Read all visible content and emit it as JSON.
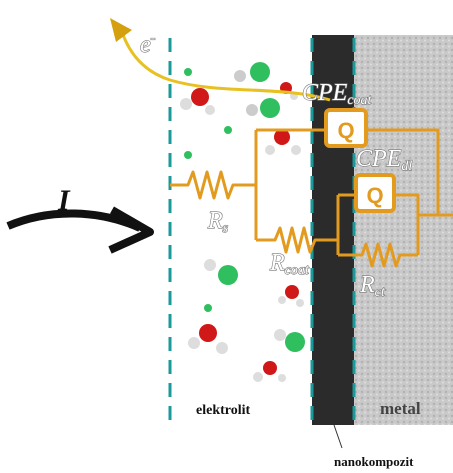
{
  "current": "I",
  "electron": {
    "symbol": "e",
    "sup": "-"
  },
  "elements": [
    {
      "symbol": "CPE",
      "sub": "coat"
    },
    {
      "symbol": "CPE",
      "sub": "dl"
    },
    {
      "symbol": "R",
      "sub": "s"
    },
    {
      "symbol": "R",
      "sub": "coat"
    },
    {
      "symbol": "R",
      "sub": "ct"
    }
  ],
  "cpe_box": "Q",
  "regions": {
    "electrolyte": "elektrolit",
    "metal": "metal",
    "coating": "nanokompozit"
  }
}
